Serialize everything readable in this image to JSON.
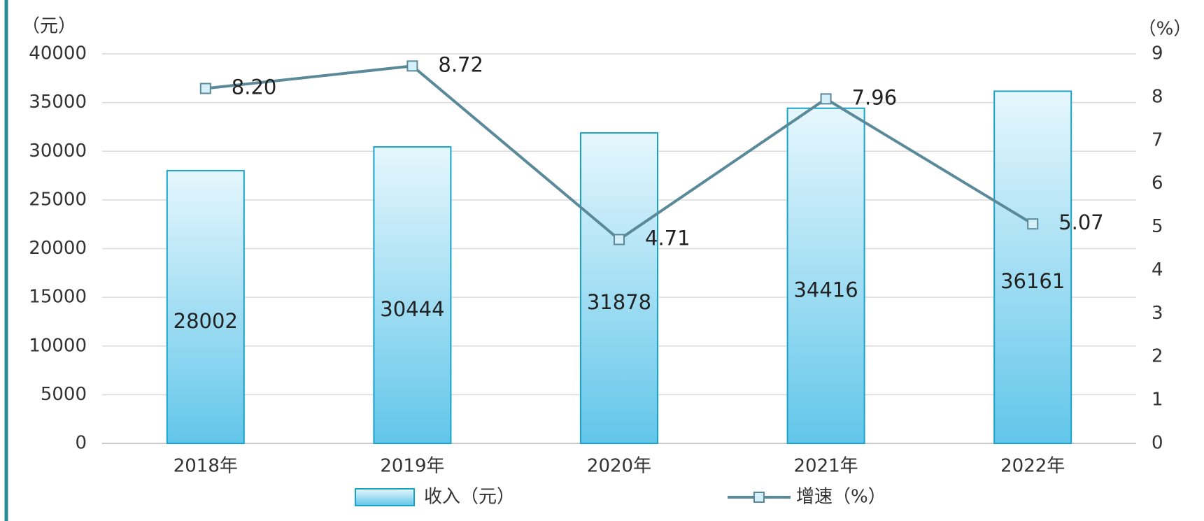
{
  "chart_data": {
    "type": "bar",
    "categories": [
      "2018年",
      "2019年",
      "2020年",
      "2021年",
      "2022年"
    ],
    "series": [
      {
        "name": "收入（元）",
        "type": "bar",
        "color": "#1aa3c8",
        "values": [
          28002,
          30444,
          31878,
          34416,
          36161
        ]
      },
      {
        "name": "增速（%）",
        "type": "line",
        "axis": "y2",
        "color": "#5a8a9a",
        "values": [
          8.2,
          8.72,
          4.71,
          7.96,
          5.07
        ],
        "value_labels": [
          "8.20",
          "8.72",
          "4.71",
          "7.96",
          "5.07"
        ]
      }
    ],
    "ylabel": "（元）",
    "y2label": "（%）",
    "ylim": [
      0,
      40000
    ],
    "yticks": [
      0,
      5000,
      10000,
      15000,
      20000,
      25000,
      30000,
      35000,
      40000
    ],
    "y2lim": [
      0,
      9
    ],
    "y2ticks": [
      0,
      1,
      2,
      3,
      4,
      5,
      6,
      7,
      8,
      9
    ],
    "grid": true,
    "legend": "bottom"
  }
}
